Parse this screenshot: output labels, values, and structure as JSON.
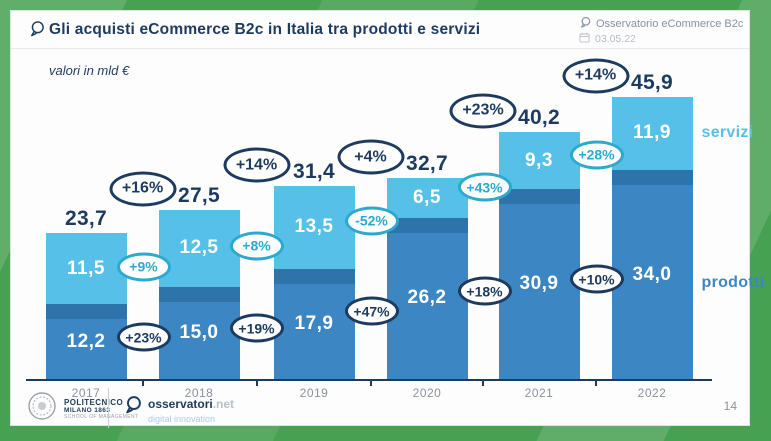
{
  "header": {
    "title": "Gli acquisti eCommerce B2c in Italia tra prodotti e servizi",
    "source": "Osservatorio eCommerce B2c",
    "date": "03.05.22"
  },
  "subtitle": "valori in mld €",
  "legend": {
    "servizi": "servizi",
    "prodotti": "prodotti"
  },
  "footer": {
    "politecnico": [
      "POLITECNICO",
      "MILANO 1863",
      "SCHOOL OF MANAGEMENT"
    ],
    "osservatori_brand": "osservatori",
    "osservatori_tld": ".net",
    "osservatori_tagline": "digital innovation",
    "page_number": "14"
  },
  "colors": {
    "servizi": "#56C0E8",
    "prodotti": "#3C86C4",
    "prodotti_top_shade": "#2E73A9",
    "navy": "#1D3A5F",
    "teal": "#2BA9CE",
    "year_gray": "#8B929C",
    "frame_green": "#47A152"
  },
  "chart_data": {
    "type": "bar",
    "subtype": "stacked",
    "title": "Gli acquisti eCommerce B2c in Italia tra prodotti e servizi",
    "unit": "valori in mld €",
    "categories": [
      "2017",
      "2018",
      "2019",
      "2020",
      "2021",
      "2022"
    ],
    "series": [
      {
        "name": "prodotti",
        "values": [
          12.2,
          15.0,
          17.9,
          26.2,
          30.9,
          34.0
        ],
        "display": [
          "12,2",
          "15,0",
          "17,9",
          "26,2",
          "30,9",
          "34,0"
        ],
        "color": "#3C86C4"
      },
      {
        "name": "servizi",
        "values": [
          11.5,
          12.5,
          13.5,
          6.5,
          9.3,
          11.9
        ],
        "display": [
          "11,5",
          "12,5",
          "13,5",
          "6,5",
          "9,3",
          "11,9"
        ],
        "color": "#56C0E8"
      }
    ],
    "totals": {
      "values": [
        23.7,
        27.5,
        31.4,
        32.7,
        40.2,
        45.9
      ],
      "display": [
        "23,7",
        "27,5",
        "31,4",
        "32,7",
        "40,2",
        "45,9"
      ]
    },
    "growth_labels": {
      "total": [
        "+16%",
        "+14%",
        "+4%",
        "+23%",
        "+14%"
      ],
      "servizi": [
        "+9%",
        "+8%",
        "-52%",
        "+43%",
        "+28%"
      ],
      "prodotti": [
        "+23%",
        "+19%",
        "+47%",
        "+18%",
        "+10%"
      ]
    },
    "ylim": [
      0,
      50
    ],
    "legend_position": "right",
    "grid": false
  }
}
